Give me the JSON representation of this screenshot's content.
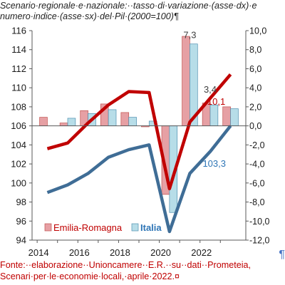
{
  "header": {
    "title_line1": "Scenario·regionale·e·nazionale:··tasso·di·variazione·(asse·dx)·e",
    "title_line2": "numero·indice·(asse·sx)·del·Pil·(2000=100)¶"
  },
  "footer": {
    "source_line1": "Fonte:··elaborazione··Unioncamere··E.R.··su··dati··Prometeia,",
    "source_line2": "Scenari·per·le·economie·locali,·aprile·2022.¤",
    "pilcrow": "¶"
  },
  "chart_data": {
    "type": "bar",
    "x": [
      2014,
      2015,
      2016,
      2017,
      2018,
      2019,
      2020,
      2021,
      2022,
      2023
    ],
    "x_tick_labels": [
      "2014",
      "2016",
      "2018",
      "2020",
      "2022"
    ],
    "x_tick_years": [
      2014,
      2016,
      2018,
      2020,
      2022
    ],
    "y_left_ticks": [
      "94",
      "96",
      "98",
      "100",
      "102",
      "104",
      "106",
      "108",
      "110",
      "112",
      "114",
      "116"
    ],
    "y_left_range": [
      94,
      116
    ],
    "y_right_ticks": [
      "-12,0",
      "-10,0",
      "-8,0",
      "-6,0",
      "-4,0",
      "-2,0",
      "0,0",
      "2,0",
      "4,0",
      "6,0",
      "8,0",
      "10,0"
    ],
    "y_right_range": [
      -12,
      10
    ],
    "bars": [
      {
        "name": "Emilia-Romagna",
        "axis": "right",
        "color": "#e6a0a4",
        "border": "#c0504d",
        "values": [
          0.9,
          0.3,
          1.6,
          2.3,
          1.4,
          -0.1,
          -7.2,
          9.4,
          2.4,
          2.0
        ]
      },
      {
        "name": "Italia",
        "axis": "right",
        "color": "#b7dde8",
        "border": "#4f8fb0",
        "values": [
          0.0,
          0.8,
          1.3,
          1.7,
          0.9,
          0.5,
          -9.1,
          8.6,
          2.2,
          1.8
        ]
      }
    ],
    "lines": [
      {
        "axis": "left",
        "color": "#c00000",
        "values": [
          103.6,
          104.2,
          106.3,
          108.2,
          109.6,
          109.5,
          99.4,
          106.4,
          108.9,
          111.4
        ]
      },
      {
        "axis": "left",
        "color": "#3f6d96",
        "values": [
          99.0,
          99.8,
          101.0,
          102.7,
          103.5,
          104.0,
          94.9,
          101.0,
          103.3,
          106.0
        ]
      }
    ],
    "annotations": [
      {
        "text": "7,3",
        "x": 2021,
        "y_right": 9.2,
        "color": "#404040"
      },
      {
        "text": "3,4",
        "x": 2022,
        "y_right": 3.5,
        "color": "#404040"
      },
      {
        "text": "10,1",
        "x": 2022.3,
        "y_right": 2.2,
        "color": "#c00000"
      },
      {
        "text": "103,3",
        "x": 2022.2,
        "y_right": -4.3,
        "color": "#2e75b6"
      }
    ],
    "legend_position": "bottom-left"
  }
}
